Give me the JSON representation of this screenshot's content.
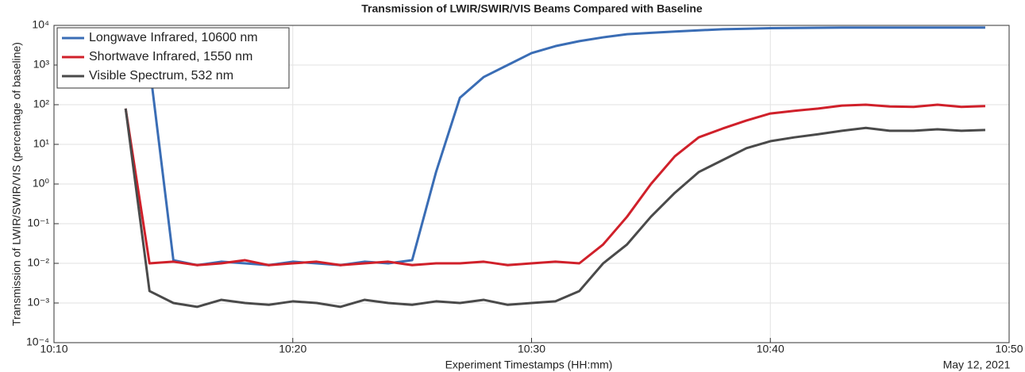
{
  "chart_data": {
    "type": "line",
    "title": "Transmission of LWIR/SWIR/VIS Beams Compared with Baseline",
    "x_label": "Experiment Timestamps (HH:mm)",
    "y_label": "Transmission of LWIR/SWIR/VIS (percentage of baseline)",
    "annotation": "May 12, 2021",
    "log_y": true,
    "grid": true,
    "legend": "upper left",
    "x": [
      "10:13",
      "10:14",
      "10:15",
      "10:16",
      "10:17",
      "10:18",
      "10:19",
      "10:20",
      "10:21",
      "10:22",
      "10:23",
      "10:24",
      "10:25",
      "10:26",
      "10:27",
      "10:28",
      "10:29",
      "10:30",
      "10:31",
      "10:32",
      "10:33",
      "10:34",
      "10:35",
      "10:36",
      "10:37",
      "10:38",
      "10:39",
      "10:40",
      "10:41",
      "10:42",
      "10:43",
      "10:44",
      "10:45",
      "10:46",
      "10:47",
      "10:48",
      "10:49"
    ],
    "xlim": [
      "10:10",
      "10:50"
    ],
    "xticks": [
      "10:10",
      "10:20",
      "10:30",
      "10:40",
      "10:50"
    ],
    "ylim": [
      0.0001,
      10000
    ],
    "yticks": [
      {
        "value": 0.0001,
        "label": "10⁻⁴"
      },
      {
        "value": 0.001,
        "label": "10⁻³"
      },
      {
        "value": 0.01,
        "label": "10⁻²"
      },
      {
        "value": 0.1,
        "label": "10⁻¹"
      },
      {
        "value": 1,
        "label": "10⁰"
      },
      {
        "value": 10,
        "label": "10¹"
      },
      {
        "value": 100,
        "label": "10²"
      },
      {
        "value": 1000,
        "label": "10³"
      },
      {
        "value": 10000,
        "label": "10⁴"
      }
    ],
    "series": [
      {
        "name": "Longwave Infrared, 10600 nm",
        "color": "#3a6db5",
        "values": [
          8000,
          1000,
          0.012,
          0.009,
          0.011,
          0.01,
          0.009,
          0.011,
          0.01,
          0.009,
          0.011,
          0.01,
          0.012,
          2,
          150,
          500,
          1000,
          2000,
          3000,
          4000,
          5000,
          6000,
          6500,
          7000,
          7500,
          8000,
          8200,
          8500,
          8600,
          8700,
          8800,
          8800,
          8800,
          8800,
          8800,
          8800,
          8800
        ]
      },
      {
        "name": "Shortwave Infrared, 1550 nm",
        "color": "#d0202a",
        "values": [
          80,
          0.01,
          0.011,
          0.009,
          0.01,
          0.012,
          0.009,
          0.01,
          0.011,
          0.009,
          0.01,
          0.011,
          0.009,
          0.01,
          0.01,
          0.011,
          0.009,
          0.01,
          0.011,
          0.01,
          0.03,
          0.15,
          1,
          5,
          15,
          25,
          40,
          60,
          70,
          80,
          95,
          100,
          90,
          88,
          100,
          88,
          92
        ]
      },
      {
        "name": "Visible Spectrum, 532 nm",
        "color": "#4a4a4a",
        "values": [
          80,
          0.002,
          0.001,
          0.0008,
          0.0012,
          0.001,
          0.0009,
          0.0011,
          0.001,
          0.0008,
          0.0012,
          0.001,
          0.0009,
          0.0011,
          0.001,
          0.0012,
          0.0009,
          0.001,
          0.0011,
          0.002,
          0.01,
          0.03,
          0.15,
          0.6,
          2,
          4,
          8,
          12,
          15,
          18,
          22,
          26,
          22,
          22,
          24,
          22,
          23
        ]
      }
    ]
  }
}
